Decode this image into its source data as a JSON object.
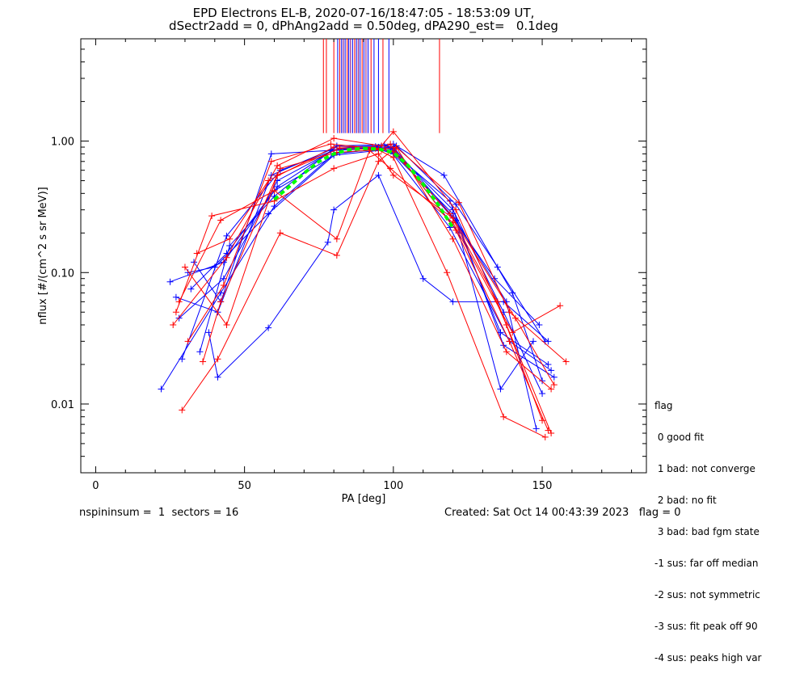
{
  "chart_data": {
    "type": "line",
    "title": "EPD Electrons EL-B, 2020-07-16/18:47:05 - 18:53:09 UT,",
    "subtitle": "dSectr2add = 0, dPhAng2add = 0.50deg, dPA290_est=   0.1deg",
    "xlabel": "PA [deg]",
    "ylabel": "nflux [#/(cm^2 s sr MeV)]",
    "xlim": [
      -5,
      185
    ],
    "ylim": [
      0.003,
      6.0
    ],
    "yscale": "log",
    "xticks": [
      0,
      50,
      100,
      150
    ],
    "xtick_labels": [
      "0",
      "50",
      "100",
      "150"
    ],
    "yticks": [
      1.0,
      0.1,
      0.01
    ],
    "ytick_labels": [
      "1.00",
      "0.10",
      "0.01"
    ],
    "colors": {
      "blue": "#0000ff",
      "red": "#ff0000",
      "green": "#00ff00",
      "purple": "#7f007f"
    },
    "vertical_lines": [
      {
        "x": 76.5,
        "color": "red"
      },
      {
        "x": 77.5,
        "color": "red"
      },
      {
        "x": 80,
        "color": "red"
      },
      {
        "x": 81.3,
        "color": "blue"
      },
      {
        "x": 82.0,
        "color": "red"
      },
      {
        "x": 82.6,
        "color": "blue"
      },
      {
        "x": 83.2,
        "color": "purple"
      },
      {
        "x": 83.8,
        "color": "blue"
      },
      {
        "x": 84.5,
        "color": "red"
      },
      {
        "x": 85.0,
        "color": "blue"
      },
      {
        "x": 85.6,
        "color": "purple"
      },
      {
        "x": 86.3,
        "color": "blue"
      },
      {
        "x": 87.0,
        "color": "red"
      },
      {
        "x": 87.6,
        "color": "blue"
      },
      {
        "x": 88.2,
        "color": "purple"
      },
      {
        "x": 88.8,
        "color": "blue"
      },
      {
        "x": 89.5,
        "color": "red"
      },
      {
        "x": 90.1,
        "color": "blue"
      },
      {
        "x": 90.8,
        "color": "purple"
      },
      {
        "x": 91.5,
        "color": "blue"
      },
      {
        "x": 92.5,
        "color": "red"
      },
      {
        "x": 93.5,
        "color": "blue"
      },
      {
        "x": 95.0,
        "color": "blue"
      },
      {
        "x": 96.5,
        "color": "red"
      },
      {
        "x": 98.5,
        "color": "blue"
      },
      {
        "x": 115.5,
        "color": "red"
      }
    ],
    "series": [
      {
        "color": "blue",
        "x": [
          22,
          42,
          60,
          80,
          95,
          100,
          120,
          136,
          152
        ],
        "y": [
          0.013,
          0.07,
          0.32,
          0.8,
          0.87,
          0.8,
          0.28,
          0.035,
          0.02
        ]
      },
      {
        "color": "blue",
        "x": [
          25,
          43,
          61,
          80,
          95,
          100,
          120,
          137,
          150
        ],
        "y": [
          0.085,
          0.12,
          0.45,
          0.86,
          0.9,
          0.86,
          0.3,
          0.05,
          0.012
        ]
      },
      {
        "color": "blue",
        "x": [
          27,
          41,
          59,
          81,
          96,
          100,
          121,
          138,
          148
        ],
        "y": [
          0.065,
          0.05,
          0.55,
          0.9,
          0.92,
          0.9,
          0.25,
          0.06,
          0.0065
        ]
      },
      {
        "color": "blue",
        "x": [
          29,
          44,
          62,
          82,
          94,
          99,
          119,
          139,
          153
        ],
        "y": [
          0.022,
          0.19,
          0.6,
          0.88,
          0.91,
          0.84,
          0.22,
          0.03,
          0.018
        ]
      },
      {
        "color": "blue",
        "x": [
          31,
          40,
          58,
          80,
          95,
          101,
          121,
          135,
          151
        ],
        "y": [
          0.1,
          0.11,
          0.28,
          0.78,
          0.85,
          0.92,
          0.33,
          0.11,
          0.03
        ]
      },
      {
        "color": "blue",
        "x": [
          33,
          42,
          59,
          79,
          93,
          100,
          117,
          140,
          150
        ],
        "y": [
          0.12,
          0.06,
          0.8,
          0.85,
          0.88,
          0.95,
          0.55,
          0.07,
          0.015
        ]
      },
      {
        "color": "blue",
        "x": [
          35,
          45,
          60,
          81,
          97,
          100,
          122,
          136,
          147
        ],
        "y": [
          0.025,
          0.16,
          0.38,
          0.92,
          0.94,
          0.88,
          0.2,
          0.013,
          0.03
        ]
      },
      {
        "color": "blue",
        "x": [
          38,
          41,
          58,
          78,
          80,
          95,
          110,
          120,
          137,
          152
        ],
        "y": [
          0.035,
          0.016,
          0.038,
          0.17,
          0.3,
          0.55,
          0.09,
          0.06,
          0.06,
          0.03
        ]
      },
      {
        "color": "blue",
        "x": [
          28,
          43,
          61,
          80,
          94,
          99,
          120,
          134,
          149
        ],
        "y": [
          0.045,
          0.09,
          0.5,
          0.85,
          0.88,
          0.9,
          0.26,
          0.09,
          0.04
        ]
      },
      {
        "color": "blue",
        "x": [
          32,
          44,
          60,
          82,
          95,
          100,
          119,
          137,
          154
        ],
        "y": [
          0.075,
          0.14,
          0.42,
          0.82,
          0.86,
          0.82,
          0.35,
          0.028,
          0.016
        ]
      },
      {
        "color": "red",
        "x": [
          26,
          44,
          61,
          80,
          96,
          100,
          121,
          138,
          153
        ],
        "y": [
          0.04,
          0.13,
          0.65,
          1.05,
          0.92,
          1.18,
          0.3,
          0.04,
          0.006
        ]
      },
      {
        "color": "red",
        "x": [
          28,
          42,
          60,
          81,
          92,
          99,
          120,
          140,
          156
        ],
        "y": [
          0.06,
          0.25,
          0.42,
          0.18,
          0.85,
          0.62,
          0.24,
          0.035,
          0.056
        ]
      },
      {
        "color": "red",
        "x": [
          29,
          41,
          62,
          81,
          95,
          101,
          122,
          139,
          158
        ],
        "y": [
          0.009,
          0.022,
          0.2,
          0.135,
          0.7,
          0.9,
          0.34,
          0.05,
          0.021
        ]
      },
      {
        "color": "red",
        "x": [
          31,
          43,
          59,
          79,
          94,
          100,
          118,
          137,
          151
        ],
        "y": [
          0.03,
          0.08,
          0.7,
          0.95,
          0.88,
          0.75,
          0.1,
          0.008,
          0.0056
        ]
      },
      {
        "color": "red",
        "x": [
          27,
          39,
          60,
          80,
          95,
          100,
          120,
          141,
          154
        ],
        "y": [
          0.05,
          0.27,
          0.35,
          0.62,
          0.8,
          0.55,
          0.26,
          0.045,
          0.014
        ]
      },
      {
        "color": "red",
        "x": [
          30,
          44,
          61,
          82,
          96,
          99,
          121,
          139,
          152
        ],
        "y": [
          0.11,
          0.04,
          0.55,
          0.88,
          0.86,
          0.95,
          0.21,
          0.03,
          0.0063
        ]
      },
      {
        "color": "red",
        "x": [
          34,
          45,
          58,
          80,
          93,
          100,
          119,
          135,
          150
        ],
        "y": [
          0.14,
          0.18,
          0.5,
          0.9,
          0.9,
          0.83,
          0.28,
          0.06,
          0.0075
        ]
      },
      {
        "color": "red",
        "x": [
          36,
          42,
          62,
          81,
          95,
          101,
          120,
          138,
          153
        ],
        "y": [
          0.021,
          0.06,
          0.62,
          0.82,
          0.86,
          0.9,
          0.18,
          0.025,
          0.013
        ]
      }
    ],
    "fit_curve": {
      "color": "green",
      "x": [
        60,
        65,
        70,
        75,
        80,
        85,
        90,
        95,
        100,
        105,
        110,
        115,
        120
      ],
      "y": [
        0.36,
        0.45,
        0.57,
        0.7,
        0.8,
        0.86,
        0.88,
        0.87,
        0.82,
        0.65,
        0.47,
        0.33,
        0.22
      ]
    }
  },
  "legend": {
    "lines": [
      "flag",
      " 0 good fit",
      " 1 bad: not converge",
      " 2 bad: no fit",
      " 3 bad: bad fgm state",
      "-1 sus: far off median",
      "-2 sus: not symmetric",
      "-3 sus: fit peak off 90",
      "-4 sus: peaks high var"
    ]
  },
  "footer": {
    "left": "nspininsum =  1  sectors = 16",
    "right": "Created: Sat Oct 14 00:43:39 2023   flag = 0"
  }
}
